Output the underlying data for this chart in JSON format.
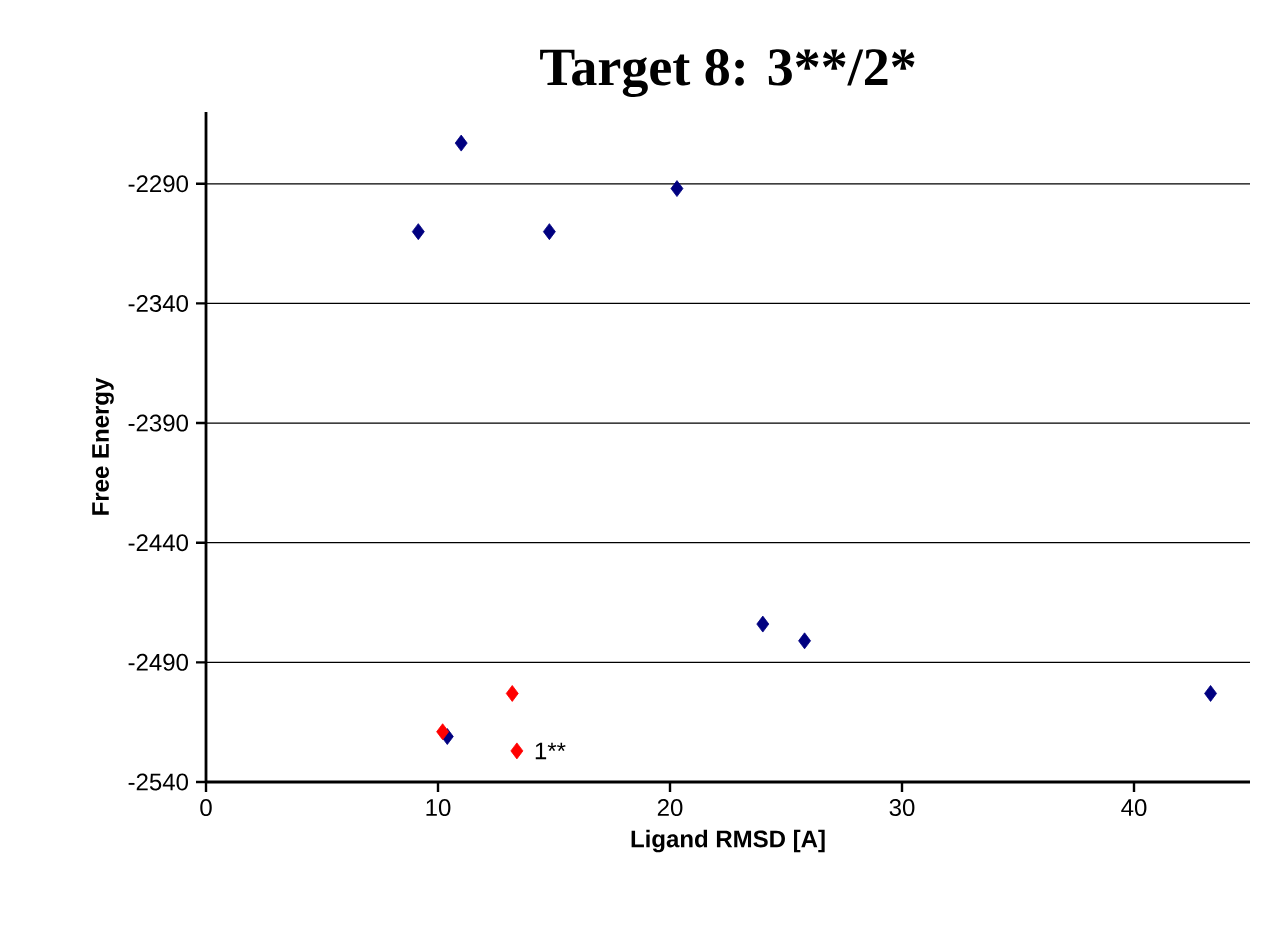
{
  "chart_data": {
    "type": "scatter",
    "title": "Target 8: 3**/2*",
    "xlabel": "Ligand RMSD [A]",
    "ylabel": "Free Energy",
    "series": [
      {
        "color": "#000080",
        "x": [
          9.15,
          11.0,
          14.8,
          20.3,
          24.0,
          25.8,
          43.3,
          10.4
        ],
        "values": [
          -2310,
          -2273,
          -2310,
          -2292,
          -2474,
          -2481,
          -2503,
          -2521
        ]
      },
      {
        "color": "#ff0000",
        "x": [
          10.2,
          13.2,
          13.4
        ],
        "values": [
          -2519,
          -2503,
          -2527
        ]
      }
    ],
    "annotations": [
      {
        "text": "1**",
        "x": 13.4,
        "y": -2527
      }
    ],
    "xlim": [
      0,
      45
    ],
    "xticks": [
      0,
      10,
      20,
      30,
      40
    ],
    "ylim": [
      -2540,
      -2260
    ],
    "yticks": [
      -2540,
      -2490,
      -2440,
      -2390,
      -2340,
      -2290
    ],
    "grid": "y",
    "marker": "diamond"
  }
}
